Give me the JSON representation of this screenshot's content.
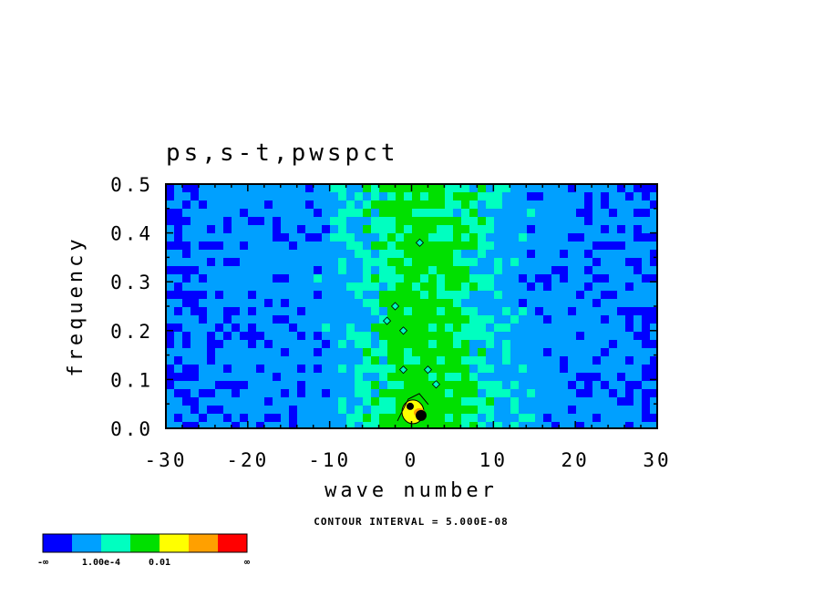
{
  "chart_data": {
    "type": "heatmap",
    "title": "ps,s-t,pwspct",
    "xlabel": "wave number",
    "ylabel": "frequency",
    "xlim": [
      -30,
      30
    ],
    "ylim": [
      0.0,
      0.5
    ],
    "xticks": [
      "-30",
      "-20",
      "-10",
      "0",
      "10",
      "20",
      "30"
    ],
    "xtick_values": [
      -30,
      -20,
      -10,
      0,
      10,
      20,
      30
    ],
    "yticks": [
      "0.0",
      "0.1",
      "0.2",
      "0.3",
      "0.4",
      "0.5"
    ],
    "ytick_values": [
      0.0,
      0.1,
      0.2,
      0.3,
      0.4,
      0.5
    ],
    "contour_interval": "CONTOUR INTERVAL = 5.000E-08",
    "colorbar": {
      "colors": [
        "#0000ff",
        "#00a0ff",
        "#00ffc0",
        "#00e000",
        "#ffff00",
        "#ffa000",
        "#ff0000"
      ],
      "labels": [
        "-∞",
        "1.00e-4",
        "0.01",
        "∞"
      ]
    },
    "features": [
      {
        "name": "background level",
        "range_x": [
          -30,
          30
        ],
        "range_y": [
          0.0,
          0.5
        ],
        "level": 2
      },
      {
        "name": "central band",
        "range_x": [
          -8,
          8
        ],
        "range_y": [
          0.0,
          0.5
        ],
        "level": 3
      },
      {
        "name": "peak",
        "x": 0.5,
        "y": 0.03,
        "level": 7
      }
    ]
  }
}
